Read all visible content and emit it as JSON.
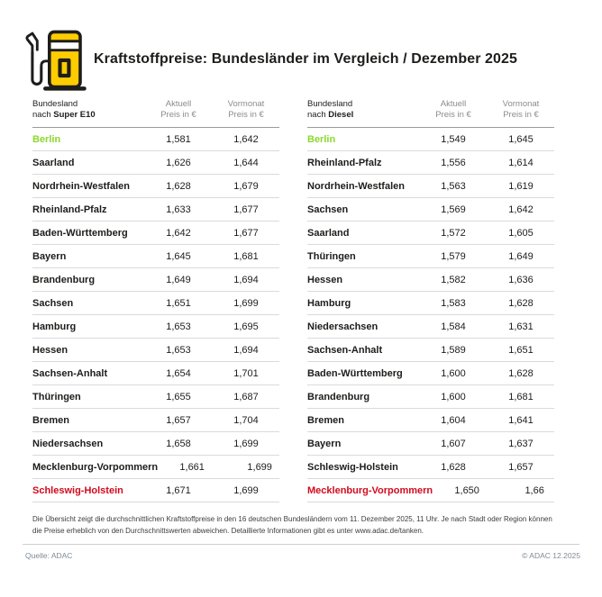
{
  "header": {
    "title": "Kraftstoffpreise: Bundesländer im Vergleich / Dezember 2025",
    "icon": "fuel-pump-icon"
  },
  "colors": {
    "adac_yellow": "#FFCC00",
    "cheapest_green": "#8CD72D",
    "most_expensive_red": "#D20A1E",
    "header_rule": "#9b9b9b",
    "row_rule": "#dadada"
  },
  "chart_data": [
    {
      "type": "table",
      "fuel": "Super E10",
      "header": {
        "state_line1": "Bundesland",
        "state_prefix": "nach ",
        "fuel_bold": "Super E10",
        "col2_line1": "Aktuell",
        "col2_line2": "Preis in €",
        "col3_line1": "Vormonat",
        "col3_line2": "Preis in €"
      },
      "rows": [
        {
          "state": "Berlin",
          "aktuell": "1,581",
          "vormonat": "1,642",
          "color": "green"
        },
        {
          "state": "Saarland",
          "aktuell": "1,626",
          "vormonat": "1,644"
        },
        {
          "state": "Nordrhein-Westfalen",
          "aktuell": "1,628",
          "vormonat": "1,679"
        },
        {
          "state": "Rheinland-Pfalz",
          "aktuell": "1,633",
          "vormonat": "1,677"
        },
        {
          "state": "Baden-Württemberg",
          "aktuell": "1,642",
          "vormonat": "1,677"
        },
        {
          "state": "Bayern",
          "aktuell": "1,645",
          "vormonat": "1,681"
        },
        {
          "state": "Brandenburg",
          "aktuell": "1,649",
          "vormonat": "1,694"
        },
        {
          "state": "Sachsen",
          "aktuell": "1,651",
          "vormonat": "1,699"
        },
        {
          "state": "Hamburg",
          "aktuell": "1,653",
          "vormonat": "1,695"
        },
        {
          "state": "Hessen",
          "aktuell": "1,653",
          "vormonat": "1,694"
        },
        {
          "state": "Sachsen-Anhalt",
          "aktuell": "1,654",
          "vormonat": "1,701"
        },
        {
          "state": "Thüringen",
          "aktuell": "1,655",
          "vormonat": "1,687"
        },
        {
          "state": "Bremen",
          "aktuell": "1,657",
          "vormonat": "1,704"
        },
        {
          "state": "Niedersachsen",
          "aktuell": "1,658",
          "vormonat": "1,699"
        },
        {
          "state": "Mecklenburg-Vorpommern",
          "aktuell": "1,661",
          "vormonat": "1,699"
        },
        {
          "state": "Schleswig-Holstein",
          "aktuell": "1,671",
          "vormonat": "1,699",
          "color": "red"
        }
      ]
    },
    {
      "type": "table",
      "fuel": "Diesel",
      "header": {
        "state_line1": "Bundesland",
        "state_prefix": "nach ",
        "fuel_bold": "Diesel",
        "col2_line1": "Aktuell",
        "col2_line2": "Preis in €",
        "col3_line1": "Vormonat",
        "col3_line2": "Preis in €"
      },
      "rows": [
        {
          "state": "Berlin",
          "aktuell": "1,549",
          "vormonat": "1,645",
          "color": "green"
        },
        {
          "state": "Rheinland-Pfalz",
          "aktuell": "1,556",
          "vormonat": "1,614"
        },
        {
          "state": "Nordrhein-Westfalen",
          "aktuell": "1,563",
          "vormonat": "1,619"
        },
        {
          "state": "Sachsen",
          "aktuell": "1,569",
          "vormonat": "1,642"
        },
        {
          "state": "Saarland",
          "aktuell": "1,572",
          "vormonat": "1,605"
        },
        {
          "state": "Thüringen",
          "aktuell": "1,579",
          "vormonat": "1,649"
        },
        {
          "state": "Hessen",
          "aktuell": "1,582",
          "vormonat": "1,636"
        },
        {
          "state": "Hamburg",
          "aktuell": "1,583",
          "vormonat": "1,628"
        },
        {
          "state": "Niedersachsen",
          "aktuell": "1,584",
          "vormonat": "1,631"
        },
        {
          "state": "Sachsen-Anhalt",
          "aktuell": "1,589",
          "vormonat": "1,651"
        },
        {
          "state": "Baden-Württemberg",
          "aktuell": "1,600",
          "vormonat": "1,628"
        },
        {
          "state": "Brandenburg",
          "aktuell": "1,600",
          "vormonat": "1,681"
        },
        {
          "state": "Bremen",
          "aktuell": "1,604",
          "vormonat": "1,641"
        },
        {
          "state": "Bayern",
          "aktuell": "1,607",
          "vormonat": "1,637"
        },
        {
          "state": "Schleswig-Holstein",
          "aktuell": "1,628",
          "vormonat": "1,657"
        },
        {
          "state": "Mecklenburg-Vorpommern",
          "aktuell": "1,650",
          "vormonat": "1,66",
          "color": "red"
        }
      ]
    }
  ],
  "footnote": "Die Übersicht zeigt die durchschnittlichen Kraftstoffpreise in den 16 deutschen Bundesländern vom 11. Dezember 2025, 11 Uhr. Je nach Stadt oder Region können die Preise erheblich von den Durchschnittswerten abweichen. Detaillierte Informationen gibt es unter www.adac.de/tanken.",
  "footer": {
    "source": "Quelle: ADAC",
    "copyright": "© ADAC 12.2025"
  }
}
